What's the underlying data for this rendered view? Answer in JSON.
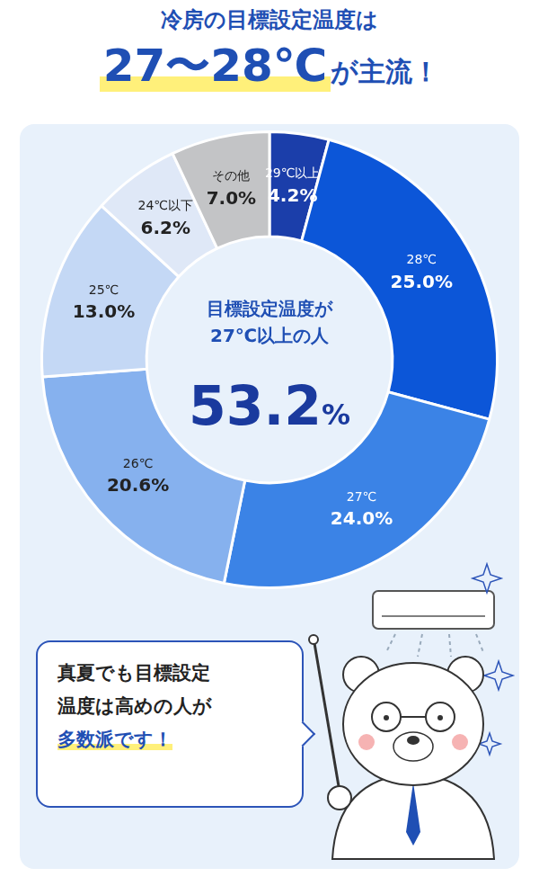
{
  "chart_data": {
    "type": "doughnut",
    "title": "冷房の目標設定温度は",
    "subtitle": "27〜28℃が主流！",
    "categories": [
      "29℃以上",
      "28℃",
      "27℃",
      "26℃",
      "25℃",
      "24℃以下",
      "その他"
    ],
    "values": [
      4.2,
      25.0,
      24.0,
      20.6,
      13.0,
      6.2,
      7.0
    ],
    "value_labels": [
      "4.2%",
      "25.0%",
      "24.0%",
      "20.6%",
      "13.0%",
      "6.2%",
      "7.0%"
    ],
    "colors": [
      "#1b3eaa",
      "#0c56d8",
      "#3b83e6",
      "#86b1ee",
      "#c4d8f5",
      "#dfe8f7",
      "#c3c4c6"
    ],
    "data_labels": true,
    "annotations": [
      {
        "text": "目標設定温度が27℃以上の人",
        "value": 53.2,
        "value_label": "53.2%"
      }
    ]
  },
  "callout": {
    "text": "真夏でも目標設定温度は高めの人が多数派です！"
  }
}
